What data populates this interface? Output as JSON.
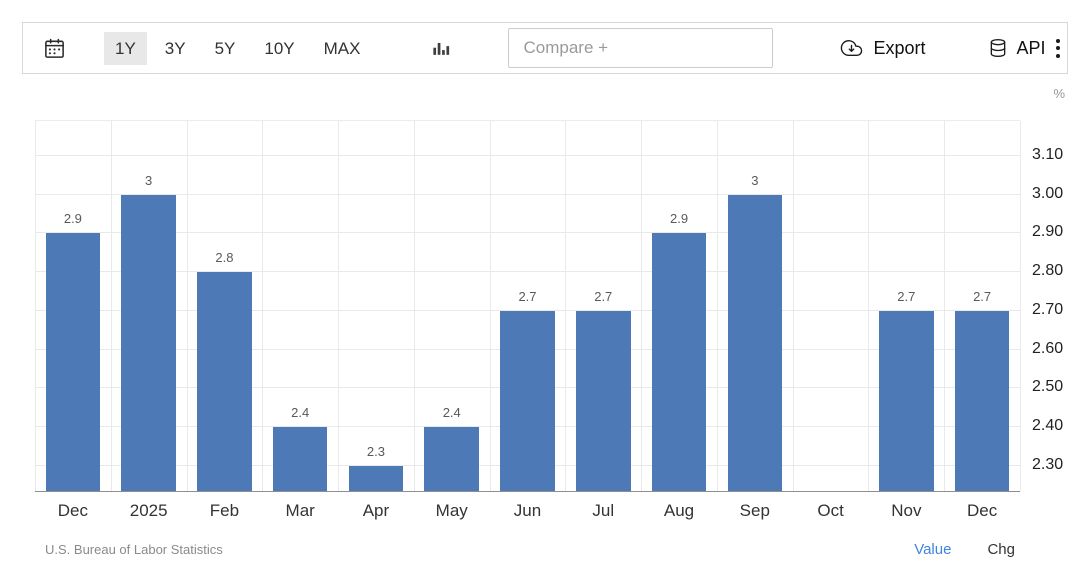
{
  "toolbar": {
    "calendar_icon": "calendar-icon",
    "ranges": [
      {
        "label": "1Y",
        "selected": true
      },
      {
        "label": "3Y",
        "selected": false
      },
      {
        "label": "5Y",
        "selected": false
      },
      {
        "label": "10Y",
        "selected": false
      },
      {
        "label": "MAX",
        "selected": false
      }
    ],
    "chart_type_icon": "bar-chart-icon",
    "compare_placeholder": "Compare +",
    "export_icon": "cloud-download-icon",
    "export_label": "Export",
    "api_icon": "database-icon",
    "api_label": "API",
    "more_menu_icon": "kebab-menu-icon"
  },
  "chart_data": {
    "type": "bar",
    "unit": "%",
    "bar_color": "#4e79b7",
    "grid": true,
    "y_axis_side": "right",
    "ylim": [
      2.235,
      3.19
    ],
    "yticks": [
      {
        "value": 3.1,
        "label": "3.10"
      },
      {
        "value": 3.0,
        "label": "3.00"
      },
      {
        "value": 2.9,
        "label": "2.90"
      },
      {
        "value": 2.8,
        "label": "2.80"
      },
      {
        "value": 2.7,
        "label": "2.70"
      },
      {
        "value": 2.6,
        "label": "2.60"
      },
      {
        "value": 2.5,
        "label": "2.50"
      },
      {
        "value": 2.4,
        "label": "2.40"
      },
      {
        "value": 2.3,
        "label": "2.30"
      }
    ],
    "points": [
      {
        "category": "Dec",
        "value": 2.9,
        "label": "2.9"
      },
      {
        "category": "2025",
        "value": 3,
        "label": "3"
      },
      {
        "category": "Feb",
        "value": 2.8,
        "label": "2.8"
      },
      {
        "category": "Mar",
        "value": 2.4,
        "label": "2.4"
      },
      {
        "category": "Apr",
        "value": 2.3,
        "label": "2.3"
      },
      {
        "category": "May",
        "value": 2.4,
        "label": "2.4"
      },
      {
        "category": "Jun",
        "value": 2.7,
        "label": "2.7"
      },
      {
        "category": "Jul",
        "value": 2.7,
        "label": "2.7"
      },
      {
        "category": "Aug",
        "value": 2.9,
        "label": "2.9"
      },
      {
        "category": "Sep",
        "value": 3,
        "label": "3"
      },
      {
        "category": "Oct",
        "value": null,
        "label": ""
      },
      {
        "category": "Nov",
        "value": 2.7,
        "label": "2.7"
      },
      {
        "category": "Dec",
        "value": 2.7,
        "label": "2.7"
      }
    ]
  },
  "footer": {
    "source": "U.S. Bureau of Labor Statistics",
    "value_label": "Value",
    "value_color": "#3d85e0",
    "chg_label": "Chg"
  }
}
